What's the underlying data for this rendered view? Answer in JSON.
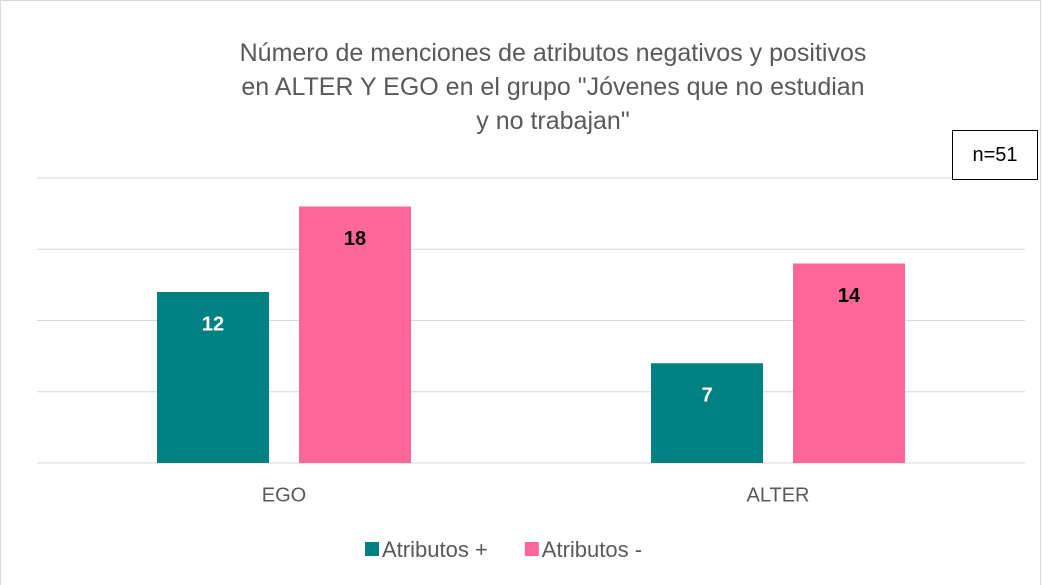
{
  "chart_data": {
    "type": "bar",
    "title": "Número de menciones de atributos negativos y positivos\nen ALTER Y EGO en el grupo \"Jóvenes que no estudian\ny no trabajan\"",
    "annotation": "n=51",
    "categories": [
      "EGO",
      "ALTER"
    ],
    "series": [
      {
        "name": "Atributos +",
        "color": "#008080",
        "label_color": "#ffffff",
        "values": [
          12,
          7
        ]
      },
      {
        "name": "Atributos -",
        "color": "#ff6699",
        "label_color": "#000000",
        "values": [
          18,
          14
        ]
      }
    ],
    "ylim": [
      0,
      20
    ],
    "yticks": [
      0,
      5,
      10,
      15,
      20
    ],
    "grid": true,
    "legend": "bottom"
  }
}
